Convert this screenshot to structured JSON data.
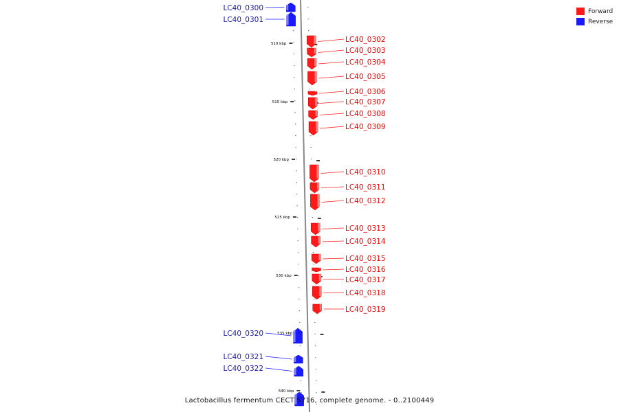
{
  "caption": "Lactobacillus fermentum CECT 5716, complete genome. - 0..2100449",
  "legend": [
    {
      "label": "Forward",
      "color": "#ff0000"
    },
    {
      "label": "Reverse",
      "color": "#0000ff"
    }
  ],
  "colors": {
    "forward": "#ff1a1a",
    "reverse": "#1a1aff",
    "axis": "#888888"
  },
  "scale_labels": [
    "510 kbp",
    "515 kbp",
    "520 kbp",
    "525 kbp",
    "530 kbp",
    "535 kbp",
    "540 kbp"
  ],
  "genes": [
    {
      "id": "LC40_0300",
      "strand": "reverse"
    },
    {
      "id": "LC40_0301",
      "strand": "reverse"
    },
    {
      "id": "LC40_0302",
      "strand": "forward"
    },
    {
      "id": "LC40_0303",
      "strand": "forward"
    },
    {
      "id": "LC40_0304",
      "strand": "forward"
    },
    {
      "id": "LC40_0305",
      "strand": "forward"
    },
    {
      "id": "LC40_0306",
      "strand": "forward"
    },
    {
      "id": "LC40_0307",
      "strand": "forward"
    },
    {
      "id": "LC40_0308",
      "strand": "forward"
    },
    {
      "id": "LC40_0309",
      "strand": "forward"
    },
    {
      "id": "LC40_0310",
      "strand": "forward"
    },
    {
      "id": "LC40_0311",
      "strand": "forward"
    },
    {
      "id": "LC40_0312",
      "strand": "forward"
    },
    {
      "id": "LC40_0313",
      "strand": "forward"
    },
    {
      "id": "LC40_0314",
      "strand": "forward"
    },
    {
      "id": "LC40_0315",
      "strand": "forward"
    },
    {
      "id": "LC40_0316",
      "strand": "forward"
    },
    {
      "id": "LC40_0317",
      "strand": "forward"
    },
    {
      "id": "LC40_0318",
      "strand": "forward"
    },
    {
      "id": "LC40_0319",
      "strand": "forward"
    },
    {
      "id": "LC40_0320",
      "strand": "reverse"
    },
    {
      "id": "LC40_0321",
      "strand": "reverse"
    },
    {
      "id": "LC40_0322",
      "strand": "reverse"
    },
    {
      "id": "",
      "strand": "reverse"
    }
  ]
}
